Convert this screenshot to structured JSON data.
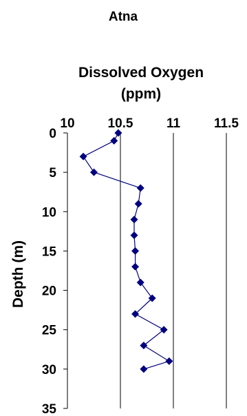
{
  "chart_data": {
    "type": "line",
    "title": "Atna",
    "xlabel": "Dissolved Oxygen (ppm)",
    "xlabel_lines": [
      "Dissolved Oxygen",
      "(ppm)"
    ],
    "ylabel": "Depth (m)",
    "x_axis_position": "top",
    "y_axis_inverted": true,
    "xlim": [
      10,
      11.5
    ],
    "ylim": [
      0,
      35
    ],
    "x_ticks": [
      10,
      10.5,
      11,
      11.5
    ],
    "x_tick_labels": [
      "10",
      "10.5",
      "11",
      "11.5"
    ],
    "y_ticks": [
      0,
      5,
      10,
      15,
      20,
      25,
      30,
      35
    ],
    "y_tick_labels": [
      "0",
      "5",
      "10",
      "15",
      "20",
      "25",
      "30",
      "35"
    ],
    "grid": "vertical gridlines at x ticks",
    "marker": "diamond",
    "series_color": "#00007f",
    "series": [
      {
        "points": [
          {
            "x": 10.48,
            "y": 0
          },
          {
            "x": 10.44,
            "y": 1
          },
          {
            "x": 10.15,
            "y": 3
          },
          {
            "x": 10.25,
            "y": 5
          },
          {
            "x": 10.69,
            "y": 7
          },
          {
            "x": 10.67,
            "y": 9
          },
          {
            "x": 10.63,
            "y": 11
          },
          {
            "x": 10.63,
            "y": 13
          },
          {
            "x": 10.64,
            "y": 15
          },
          {
            "x": 10.64,
            "y": 17
          },
          {
            "x": 10.69,
            "y": 19
          },
          {
            "x": 10.8,
            "y": 21
          },
          {
            "x": 10.64,
            "y": 23
          },
          {
            "x": 10.91,
            "y": 25
          },
          {
            "x": 10.72,
            "y": 27
          },
          {
            "x": 10.96,
            "y": 29
          },
          {
            "x": 10.72,
            "y": 30
          }
        ]
      }
    ]
  }
}
